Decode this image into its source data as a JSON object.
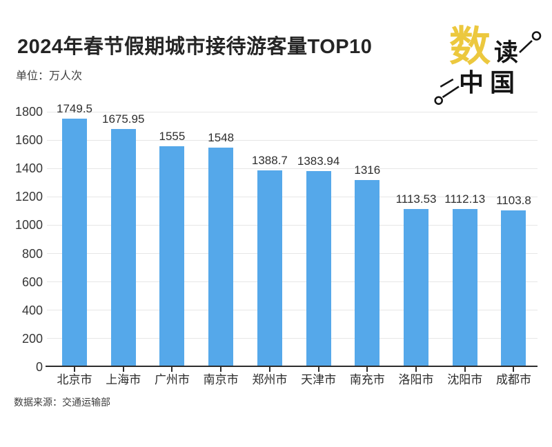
{
  "header": {
    "title": "2024年春节假期城市接待游客量TOP10",
    "unit_label": "单位：万人次"
  },
  "logo": {
    "char_gold": "数",
    "char_black": "读",
    "bottom_text": "中国",
    "gold_color": "#ecc83e",
    "black_color": "#141414",
    "pin_icon_color": "#151515"
  },
  "footer": {
    "source": "数据来源：交通运输部"
  },
  "chart_data": {
    "type": "bar",
    "title": "2024年春节假期城市接待游客量TOP10",
    "unit": "万人次",
    "categories": [
      "北京市",
      "上海市",
      "广州市",
      "南京市",
      "郑州市",
      "天津市",
      "南充市",
      "洛阳市",
      "沈阳市",
      "成都市"
    ],
    "values": [
      1749.5,
      1675.95,
      1555,
      1548,
      1388.7,
      1383.94,
      1316,
      1113.53,
      1112.13,
      1103.8
    ],
    "value_labels": [
      "1749.5",
      "1675.95",
      "1555",
      "1548",
      "1388.7",
      "1383.94",
      "1316",
      "1113.53",
      "1112.13",
      "1103.8"
    ],
    "ylim": [
      0,
      1800
    ],
    "ytick_step": 200,
    "yticks": [
      0,
      200,
      400,
      600,
      800,
      1000,
      1200,
      1400,
      1600,
      1800
    ],
    "bar_color": "#55a8ea",
    "gridline_color": "#e6e6e6",
    "grid": true,
    "legend": false,
    "data_source": "交通运输部"
  }
}
